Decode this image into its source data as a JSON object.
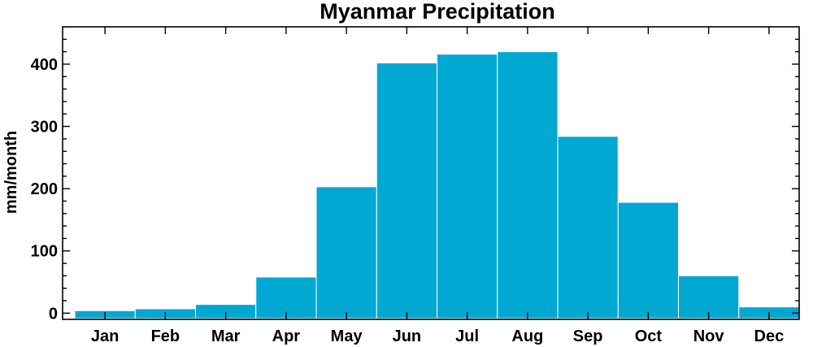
{
  "chart_data": {
    "type": "bar",
    "title": "Myanmar Precipitation",
    "xlabel": "",
    "ylabel": "mm/month",
    "categories": [
      "Jan",
      "Feb",
      "Mar",
      "Apr",
      "May",
      "Jun",
      "Jul",
      "Aug",
      "Sep",
      "Oct",
      "Nov",
      "Dec"
    ],
    "values": [
      4,
      7,
      14,
      58,
      203,
      402,
      416,
      420,
      284,
      178,
      60,
      10
    ],
    "ylim": [
      -10,
      460
    ],
    "yticks": [
      0,
      100,
      200,
      300,
      400
    ],
    "ytick_labels": [
      "0",
      "100",
      "200",
      "300",
      "400"
    ],
    "bar_color": "#00a8d2",
    "bar_edge_color": "#ffffff",
    "grid": false,
    "legend": "none"
  }
}
